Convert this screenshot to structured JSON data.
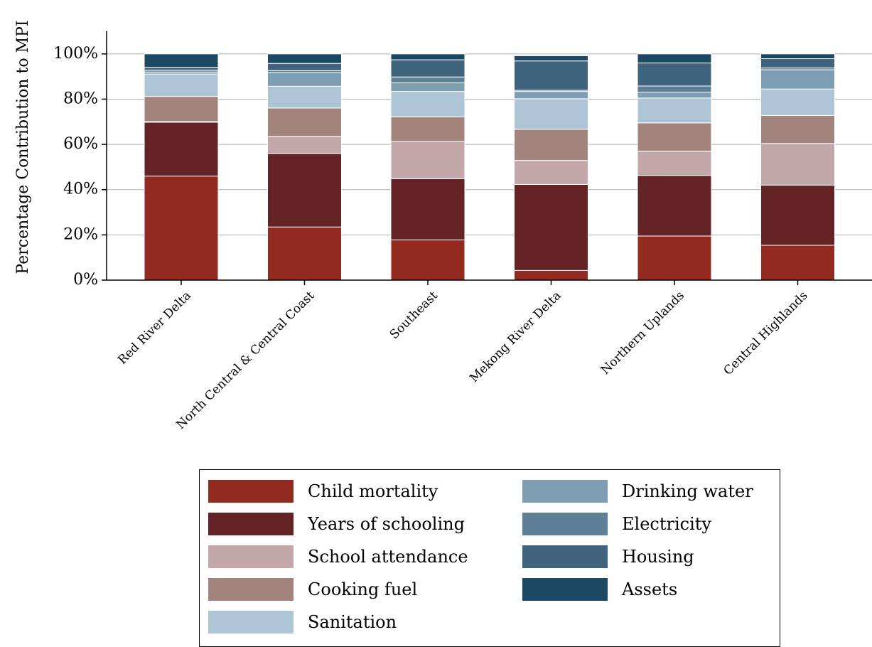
{
  "chart_data": {
    "type": "bar",
    "stacked": true,
    "ylabel": "Percentage Contribution to MPI",
    "xlabel": "",
    "ylim": [
      0,
      110
    ],
    "yticks": [
      "0%",
      "20%",
      "40%",
      "60%",
      "80%",
      "100%"
    ],
    "ytick_values": [
      0,
      20,
      40,
      60,
      80,
      100
    ],
    "grid": "horizontal",
    "legend_position": "bottom",
    "categories": [
      "Red River Delta",
      "North Central & Central Coast",
      "Southeast",
      "Mekong River Delta",
      "Northern Uplands",
      "Central Highlands"
    ],
    "series": [
      {
        "name": "Child mortality",
        "color": "#922a20",
        "values": [
          46.0,
          23.5,
          17.8,
          4.3,
          19.5,
          15.4
        ]
      },
      {
        "name": "Years of schooling",
        "color": "#632324",
        "values": [
          23.8,
          32.5,
          27.0,
          38.0,
          26.8,
          26.6
        ]
      },
      {
        "name": "School attendance",
        "color": "#c4a7a8",
        "values": [
          0.3,
          7.6,
          16.5,
          10.6,
          10.7,
          18.4
        ]
      },
      {
        "name": "Cooking fuel",
        "color": "#a3847c",
        "values": [
          11.1,
          12.5,
          10.9,
          13.8,
          12.5,
          12.4
        ]
      },
      {
        "name": "Sanitation",
        "color": "#adc5d4",
        "values": [
          9.9,
          9.6,
          11.2,
          13.5,
          11.0,
          11.7
        ]
      },
      {
        "name": "Drinking water",
        "color": "#7d9db3",
        "values": [
          0.9,
          6.1,
          3.8,
          3.2,
          2.6,
          8.5
        ]
      },
      {
        "name": "Electricity",
        "color": "#5d7f98",
        "values": [
          0.8,
          0.8,
          2.6,
          0.5,
          2.7,
          0.8
        ]
      },
      {
        "name": "Housing",
        "color": "#41647e",
        "values": [
          1.3,
          3.2,
          7.6,
          13.0,
          10.2,
          4.1
        ]
      },
      {
        "name": "Assets",
        "color": "#1b4964",
        "values": [
          5.9,
          4.2,
          2.6,
          2.3,
          4.0,
          2.1
        ]
      }
    ]
  }
}
